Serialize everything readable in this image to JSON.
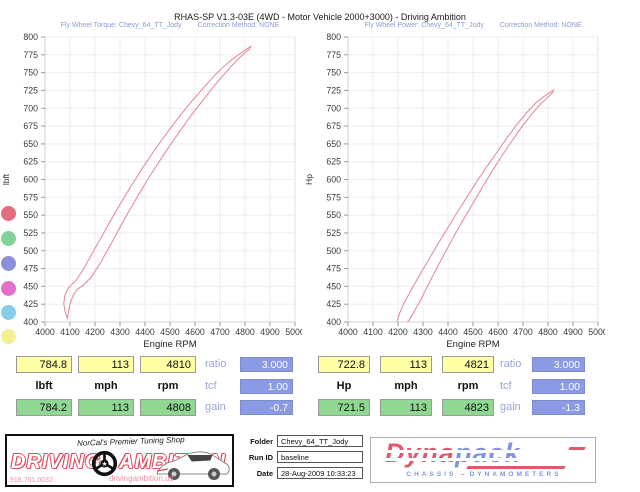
{
  "title": "RHAS-SP V1.3-03E  (4WD - Motor Vehicle 2000+3000) - Driving Ambition",
  "chart_data": [
    {
      "type": "line",
      "title": "Fly Wheel Torque: Chevy_64_TT_Jody",
      "correction": "Correction Method: NONE",
      "xlabel": "Engine RPM",
      "ylabel": "lbft",
      "xlim": [
        4000,
        5000
      ],
      "ylim": [
        400,
        800
      ],
      "xtick_step": 100,
      "ytick_step": 25,
      "grid": true,
      "peak_value": 784.8,
      "peak_rpm": 4810,
      "series": [
        {
          "name": "torque-run-loop",
          "color": "#e2909e",
          "points": [
            [
              4090,
              404
            ],
            [
              4080,
              415
            ],
            [
              4075,
              426
            ],
            [
              4079,
              437
            ],
            [
              4090,
              446
            ],
            [
              4105,
              452
            ],
            [
              4125,
              459
            ],
            [
              4155,
              475
            ],
            [
              4190,
              497
            ],
            [
              4230,
              522
            ],
            [
              4270,
              547
            ],
            [
              4310,
              571
            ],
            [
              4350,
              594
            ],
            [
              4390,
              616
            ],
            [
              4430,
              637
            ],
            [
              4470,
              657
            ],
            [
              4510,
              676
            ],
            [
              4550,
              694
            ],
            [
              4590,
              711
            ],
            [
              4630,
              727
            ],
            [
              4670,
              743
            ],
            [
              4710,
              757
            ],
            [
              4750,
              769
            ],
            [
              4785,
              778
            ],
            [
              4810,
              784
            ],
            [
              4823,
              787
            ],
            [
              4818,
              783
            ],
            [
              4800,
              778
            ],
            [
              4775,
              770
            ],
            [
              4740,
              757
            ],
            [
              4700,
              741
            ],
            [
              4660,
              724
            ],
            [
              4620,
              706
            ],
            [
              4580,
              688
            ],
            [
              4540,
              668
            ],
            [
              4500,
              648
            ],
            [
              4460,
              627
            ],
            [
              4420,
              605
            ],
            [
              4380,
              582
            ],
            [
              4340,
              558
            ],
            [
              4300,
              533
            ],
            [
              4260,
              507
            ],
            [
              4220,
              482
            ],
            [
              4185,
              463
            ],
            [
              4155,
              452
            ],
            [
              4130,
              446
            ],
            [
              4112,
              437
            ],
            [
              4100,
              425
            ],
            [
              4093,
              413
            ],
            [
              4090,
              405
            ]
          ]
        }
      ]
    },
    {
      "type": "line",
      "title": "Fly Wheel Power: Chevy_64_TT_Jody",
      "correction": "Correction Method: NONE",
      "xlabel": "Engine RPM",
      "ylabel": "Hp",
      "xlim": [
        4000,
        5000
      ],
      "ylim": [
        400,
        800
      ],
      "xtick_step": 100,
      "ytick_step": 25,
      "grid": true,
      "peak_value": 722.8,
      "peak_rpm": 4821,
      "series": [
        {
          "name": "power-run-loop",
          "color": "#e2909e",
          "points": [
            [
              4196,
              401
            ],
            [
              4206,
              412
            ],
            [
              4222,
              425
            ],
            [
              4248,
              442
            ],
            [
              4280,
              462
            ],
            [
              4315,
              483
            ],
            [
              4355,
              507
            ],
            [
              4395,
              530
            ],
            [
              4435,
              553
            ],
            [
              4475,
              575
            ],
            [
              4515,
              597
            ],
            [
              4555,
              618
            ],
            [
              4595,
              638
            ],
            [
              4635,
              658
            ],
            [
              4675,
              677
            ],
            [
              4715,
              694
            ],
            [
              4755,
              709
            ],
            [
              4790,
              718
            ],
            [
              4812,
              723
            ],
            [
              4822,
              725
            ],
            [
              4816,
              721
            ],
            [
              4798,
              715
            ],
            [
              4770,
              706
            ],
            [
              4735,
              692
            ],
            [
              4695,
              674
            ],
            [
              4655,
              654
            ],
            [
              4615,
              633
            ],
            [
              4575,
              611
            ],
            [
              4535,
              588
            ],
            [
              4495,
              564
            ],
            [
              4455,
              540
            ],
            [
              4415,
              515
            ],
            [
              4375,
              489
            ],
            [
              4335,
              462
            ],
            [
              4295,
              434
            ],
            [
              4265,
              415
            ],
            [
              4245,
              403
            ],
            [
              4237,
              400
            ]
          ]
        }
      ]
    }
  ],
  "legend": {
    "dot_colors": [
      "#e36d7e",
      "#82d398",
      "#8a90dc",
      "#e470cd",
      "#85cde8",
      "#f4f096"
    ]
  },
  "panels": [
    {
      "peak_row": [
        "784.8",
        "113",
        "4810"
      ],
      "units_row": [
        "lbft",
        "mph",
        "rpm"
      ],
      "end_row": [
        "784.2",
        "113",
        "4808"
      ],
      "side": [
        {
          "label": "ratio",
          "value": "3.000"
        },
        {
          "label": "tcf",
          "value": "1.00"
        },
        {
          "label": "gain",
          "value": "-0.7"
        }
      ]
    },
    {
      "peak_row": [
        "722.8",
        "113",
        "4821"
      ],
      "units_row": [
        "Hp",
        "mph",
        "rpm"
      ],
      "end_row": [
        "721.5",
        "113",
        "4823"
      ],
      "side": [
        {
          "label": "ratio",
          "value": "3.000"
        },
        {
          "label": "tcf",
          "value": "1.00"
        },
        {
          "label": "gain",
          "value": "-1.3"
        }
      ]
    }
  ],
  "footer": {
    "shop": {
      "tagline": "NorCal's Premier Tuning Shop",
      "name_left": "DRIVING",
      "name_right": "AMBITION",
      "phone": "916.761.0032",
      "website": "drivingambition.us"
    },
    "run_info": {
      "fields": [
        {
          "label": "Folder",
          "value": "Chevy_64_TT_Jody"
        },
        {
          "label": "Run ID",
          "value": "baseline"
        },
        {
          "label": "Date",
          "value": "28-Aug-2009  10:33:23"
        }
      ]
    },
    "dyno_brand": {
      "name_a": "Dyna",
      "name_b": "pack",
      "caption_a": "CHASSIS",
      "caption_b": "DYNAMOMETERS"
    }
  }
}
